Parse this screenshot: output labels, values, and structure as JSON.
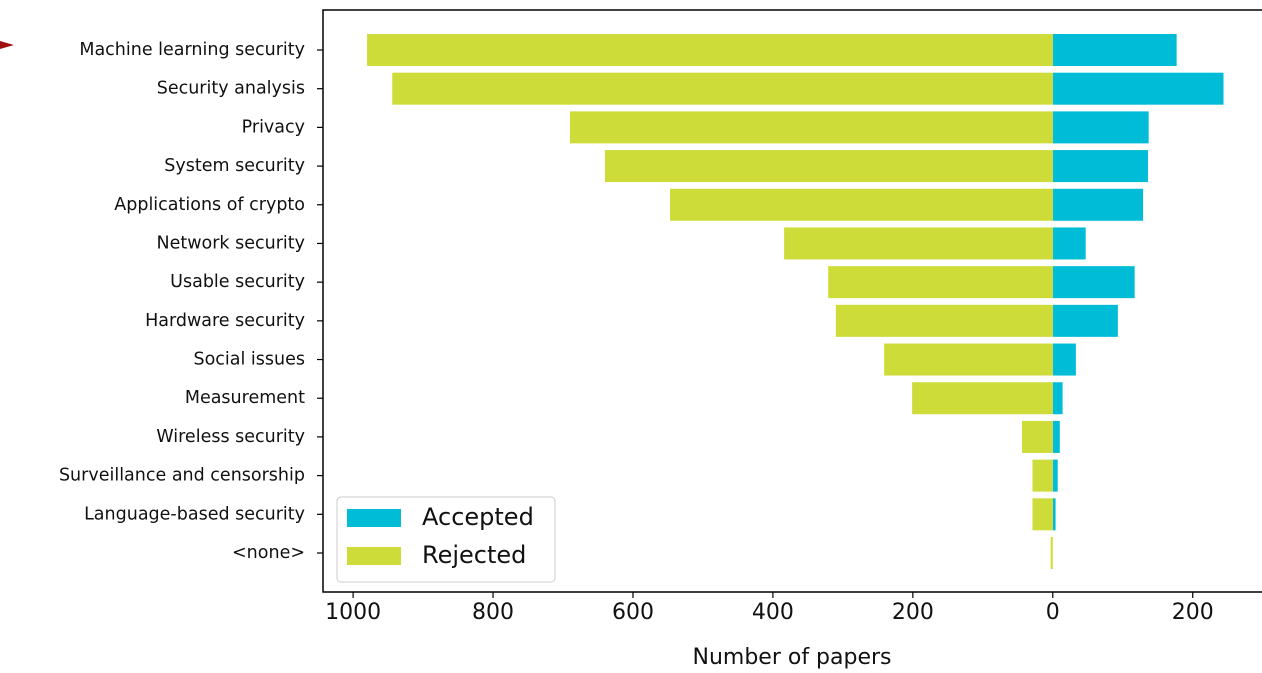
{
  "chart_data": {
    "type": "diverging-bar",
    "xlabel": "Number of papers",
    "categories": [
      "Machine learning security",
      "Security analysis",
      "Privacy",
      "System security",
      "Applications of crypto",
      "Network security",
      "Usable security",
      "Hardware security",
      "Social issues",
      "Measurement",
      "Wireless security",
      "Surveillance and censorship",
      "Language-based security",
      "<none>"
    ],
    "series": [
      {
        "name": "Accepted",
        "color": "#00bcd6",
        "values": [
          177,
          244,
          137,
          136,
          129,
          47,
          117,
          93,
          33,
          14,
          10,
          7,
          4,
          0
        ]
      },
      {
        "name": "Rejected",
        "color": "#cddc39",
        "values": [
          -980,
          -944,
          -690,
          -640,
          -547,
          -384,
          -321,
          -310,
          -241,
          -201,
          -44,
          -29,
          -29,
          -3
        ]
      }
    ],
    "xlim": [
      -1043,
      299
    ],
    "xticks": [
      {
        "value": -1000,
        "label": "1000"
      },
      {
        "value": -800,
        "label": "800"
      },
      {
        "value": -600,
        "label": "600"
      },
      {
        "value": -400,
        "label": "400"
      },
      {
        "value": -200,
        "label": "200"
      },
      0,
      200
    ],
    "legend": "lower left"
  }
}
